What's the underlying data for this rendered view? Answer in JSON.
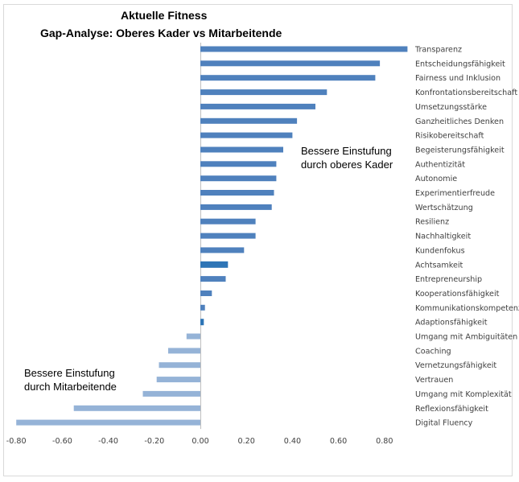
{
  "chart_data": {
    "type": "bar",
    "orientation": "horizontal",
    "title": "Aktuelle Fitness",
    "subtitle": "Gap-Analyse:  Oberes Kader vs Mitarbeitende",
    "categories": [
      "Transparenz",
      "Entscheidungsfähigkeit",
      "Fairness und Inklusion",
      "Konfrontationsbereitschaft",
      "Umsetzungsstärke",
      "Ganzheitliches Denken",
      "Risikobereitschaft",
      "Begeisterungsfähigkeit",
      "Authentizität",
      "Autonomie",
      "Experimentierfreude",
      "Wertschätzung",
      "Resilienz",
      "Nachhaltigkeit",
      "Kundenfokus",
      "Achtsamkeit",
      "Entrepreneurship",
      "Kooperationsfähigkeit",
      "Kommunikationskompetenz",
      "Adaptionsfähigkeit",
      "Umgang mit Ambiguitäten",
      "Coaching",
      "Vernetzungsfähigkeit",
      "Vertrauen",
      "Umgang mit Komplexität",
      "Reflexionsfähigkeit",
      "Digital Fluency"
    ],
    "values": [
      0.9,
      0.78,
      0.76,
      0.55,
      0.5,
      0.42,
      0.4,
      0.36,
      0.33,
      0.33,
      0.32,
      0.31,
      0.24,
      0.24,
      0.19,
      0.12,
      0.11,
      0.05,
      0.02,
      0.015,
      -0.06,
      -0.14,
      -0.18,
      -0.19,
      -0.25,
      -0.55,
      -0.8
    ],
    "highlighted": [
      "Achtsamkeit",
      "Adaptionsfähigkeit"
    ],
    "xlim": [
      -0.8,
      0.9
    ],
    "xticks": [
      "-0.80",
      "-0.60",
      "-0.40",
      "-0.20",
      "0.00",
      "0.20",
      "0.40",
      "0.60",
      "0.80"
    ],
    "xtick_values": [
      -0.8,
      -0.6,
      -0.4,
      -0.2,
      0.0,
      0.2,
      0.4,
      0.6,
      0.8
    ],
    "grid": false,
    "legend": "none",
    "annotations": [
      {
        "lines": [
          "Bessere Einstufung",
          "durch oberes Kader"
        ]
      },
      {
        "lines": [
          "Bessere Einstufung",
          "durch Mitarbeitende"
        ]
      }
    ],
    "colors": {
      "positive": "#4f81bd",
      "negative": "#95b3d7",
      "highlight": "#2e75b6",
      "axis": "#bfbfbf",
      "text": "#404040"
    }
  }
}
